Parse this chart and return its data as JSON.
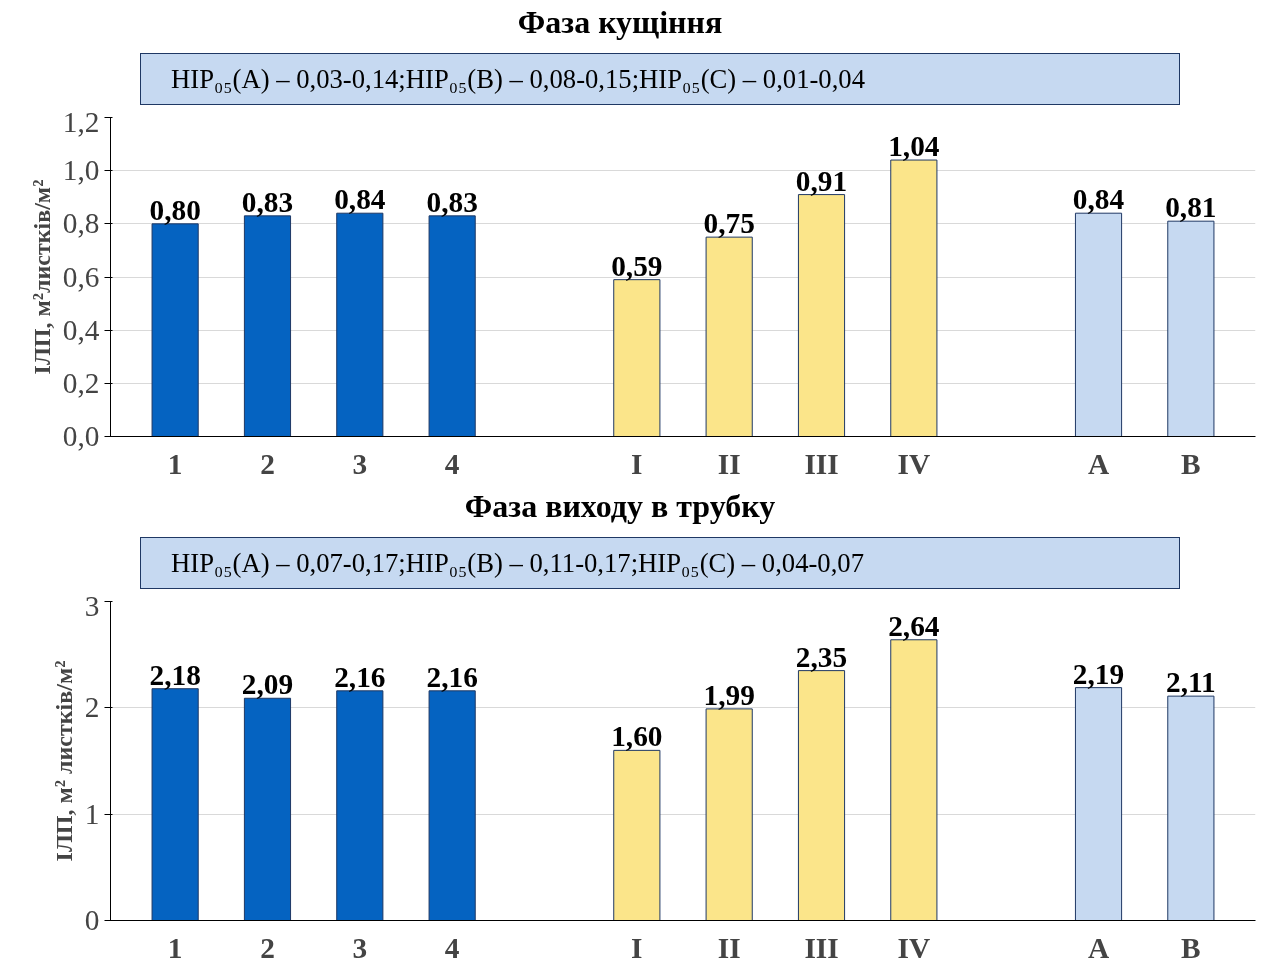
{
  "chart_data": [
    {
      "type": "bar",
      "title": "Фаза кущіння",
      "ylabel": "ІЛП, м²листків/м²",
      "annotations": [
        "НІР₀₅(A) – 0,03-0,14;",
        "НІР₀₅(B) – 0,08-0,15;",
        "НІР₀₅(C) – 0,01-0,04"
      ],
      "categories": [
        "1",
        "2",
        "3",
        "4",
        null,
        "I",
        "II",
        "III",
        "IV",
        null,
        "A",
        "B"
      ],
      "values": [
        0.8,
        0.83,
        0.84,
        0.83,
        null,
        0.59,
        0.75,
        0.91,
        1.04,
        null,
        0.84,
        0.81
      ],
      "value_labels": [
        "0,80",
        "0,83",
        "0,84",
        "0,83",
        null,
        "0,59",
        "0,75",
        "0,91",
        "1,04",
        null,
        "0,84",
        "0,81"
      ],
      "colors": [
        "#0563c1",
        "#0563c1",
        "#0563c1",
        "#0563c1",
        null,
        "#fbe58a",
        "#fbe58a",
        "#fbe58a",
        "#fbe58a",
        null,
        "#c6d9f1",
        "#c6d9f1"
      ],
      "ylim": [
        0,
        1.2
      ],
      "yticks": [
        {
          "value": 0,
          "label": "0,0"
        },
        {
          "value": 0.2,
          "label": "0,2"
        },
        {
          "value": 0.4,
          "label": "0,4"
        },
        {
          "value": 0.6,
          "label": "0,6"
        },
        {
          "value": 0.8,
          "label": "0,8"
        },
        {
          "value": 1.0,
          "label": "1,0"
        },
        {
          "value": 1.2,
          "label": "1,2"
        }
      ],
      "grid": "y"
    },
    {
      "type": "bar",
      "title": "Фаза виходу в трубку",
      "ylabel": "ІЛП, м² листків/м²",
      "annotations": [
        "НІР₀₅(A) – 0,07-0,17;",
        "НІР₀₅(B) – 0,11-0,17;",
        "НІР₀₅(C) – 0,04-0,07"
      ],
      "categories": [
        "1",
        "2",
        "3",
        "4",
        null,
        "I",
        "II",
        "III",
        "IV",
        null,
        "A",
        "B"
      ],
      "values": [
        2.18,
        2.09,
        2.16,
        2.16,
        null,
        1.6,
        1.99,
        2.35,
        2.64,
        null,
        2.19,
        2.11
      ],
      "value_labels": [
        "2,18",
        "2,09",
        "2,16",
        "2,16",
        null,
        "1,60",
        "1,99",
        "2,35",
        "2,64",
        null,
        "2,19",
        "2,11"
      ],
      "colors": [
        "#0563c1",
        "#0563c1",
        "#0563c1",
        "#0563c1",
        null,
        "#fbe58a",
        "#fbe58a",
        "#fbe58a",
        "#fbe58a",
        null,
        "#c6d9f1",
        "#c6d9f1"
      ],
      "ylim": [
        0,
        3
      ],
      "yticks": [
        0,
        1,
        2,
        3
      ],
      "grid": "y"
    }
  ]
}
